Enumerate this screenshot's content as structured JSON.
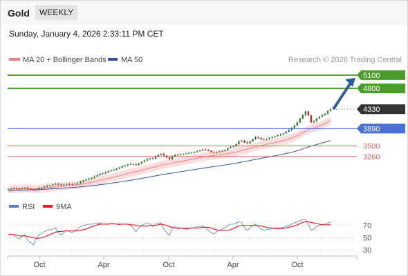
{
  "header": {
    "title": "Gold",
    "timeframe": "WEEKLY"
  },
  "timestamp": "Sunday, January 4, 2026 2:33:11 PM CET",
  "legend": {
    "items": [
      {
        "label": "MA 20 + Bollinger Bands",
        "color": "#f08080"
      },
      {
        "label": "MA 50",
        "color": "#2f5597"
      }
    ],
    "credit": "Research © 2026 Trading Central"
  },
  "rsi_legend": {
    "items": [
      {
        "label": "RSI",
        "color": "#5b7bd5"
      },
      {
        "label": "9MA",
        "color": "#e02020"
      }
    ]
  },
  "colors": {
    "resistance": "#4a9d2a",
    "pivot": "#4a6fd6",
    "support": "#e06060",
    "current": "#333333",
    "arrow": "#2f5d9e",
    "candle_up": "#2e7d32",
    "candle_down": "#c62828",
    "band_fill": "#fbd5d5"
  },
  "chart_data": [
    {
      "type": "candlestick",
      "title": "Gold",
      "x_tick_labels": [
        "Oct",
        "Apr",
        "Oct",
        "Apr",
        "Oct"
      ],
      "y_range": [
        2400,
        5300
      ],
      "levels": [
        {
          "value": 5100,
          "label": "5100",
          "kind": "resistance"
        },
        {
          "value": 4800,
          "label": "4800",
          "kind": "resistance"
        },
        {
          "value": 4330,
          "label": "4330",
          "kind": "current"
        },
        {
          "value": 3890,
          "label": "3890",
          "kind": "pivot"
        },
        {
          "value": 3500,
          "label": "3500",
          "kind": "support"
        },
        {
          "value": 3260,
          "label": "3260",
          "kind": "support"
        }
      ],
      "close_series": [
        2520,
        2535,
        2545,
        2530,
        2525,
        2540,
        2555,
        2530,
        2515,
        2500,
        2520,
        2545,
        2560,
        2580,
        2600,
        2610,
        2630,
        2645,
        2625,
        2610,
        2625,
        2640,
        2635,
        2630,
        2645,
        2660,
        2690,
        2720,
        2740,
        2760,
        2780,
        2810,
        2840,
        2870,
        2885,
        2900,
        2930,
        2950,
        2965,
        2990,
        3010,
        3040,
        3060,
        3080,
        3090,
        3085,
        3070,
        3100,
        3140,
        3170,
        3200,
        3220,
        3210,
        3260,
        3300,
        3320,
        3280,
        3240,
        3200,
        3260,
        3300,
        3290,
        3310,
        3320,
        3330,
        3340,
        3350,
        3360,
        3380,
        3400,
        3420,
        3410,
        3390,
        3360,
        3350,
        3360,
        3375,
        3390,
        3410,
        3450,
        3480,
        3500,
        3540,
        3600,
        3620,
        3580,
        3560,
        3600,
        3650,
        3700,
        3680,
        3650,
        3640,
        3660,
        3680,
        3700,
        3720,
        3740,
        3760,
        3780,
        3820,
        3860,
        3910,
        3960,
        4030,
        4120,
        4200,
        4280,
        4190,
        4030,
        4060,
        4120,
        4160,
        4200,
        4230,
        4290,
        4330
      ],
      "ma20": [
        2520,
        2525,
        2530,
        2532,
        2533,
        2535,
        2537,
        2536,
        2534,
        2532,
        2532,
        2536,
        2540,
        2546,
        2552,
        2560,
        2570,
        2580,
        2585,
        2588,
        2594,
        2600,
        2605,
        2608,
        2614,
        2620,
        2630,
        2642,
        2654,
        2665,
        2678,
        2692,
        2706,
        2722,
        2736,
        2750,
        2766,
        2782,
        2797,
        2812,
        2826,
        2842,
        2860,
        2878,
        2894,
        2908,
        2920,
        2934,
        2950,
        2966,
        2982,
        3000,
        3014,
        3030,
        3048,
        3066,
        3080,
        3090,
        3098,
        3110,
        3124,
        3136,
        3148,
        3160,
        3172,
        3184,
        3196,
        3208,
        3220,
        3232,
        3246,
        3258,
        3266,
        3274,
        3282,
        3290,
        3298,
        3306,
        3314,
        3324,
        3336,
        3348,
        3362,
        3380,
        3398,
        3412,
        3424,
        3440,
        3458,
        3478,
        3494,
        3508,
        3520,
        3534,
        3548,
        3562,
        3576,
        3590,
        3604,
        3618,
        3636,
        3656,
        3678,
        3702,
        3730,
        3762,
        3798,
        3838,
        3866,
        3886,
        3906,
        3928,
        3952,
        3978,
        4004,
        4034,
        4066
      ],
      "bb_width": 90,
      "ma50": [
        2480,
        2484,
        2488,
        2492,
        2496,
        2500,
        2503,
        2506,
        2508,
        2510,
        2512,
        2515,
        2518,
        2521,
        2524,
        2528,
        2532,
        2536,
        2540,
        2544,
        2548,
        2552,
        2556,
        2560,
        2565,
        2570,
        2576,
        2582,
        2588,
        2594,
        2601,
        2608,
        2615,
        2623,
        2631,
        2639,
        2648,
        2657,
        2666,
        2675,
        2684,
        2694,
        2704,
        2714,
        2724,
        2734,
        2744,
        2755,
        2766,
        2777,
        2788,
        2800,
        2811,
        2822,
        2834,
        2846,
        2857,
        2867,
        2876,
        2886,
        2896,
        2906,
        2916,
        2926,
        2936,
        2946,
        2956,
        2966,
        2976,
        2986,
        2996,
        3006,
        3015,
        3024,
        3033,
        3042,
        3051,
        3060,
        3069,
        3079,
        3089,
        3099,
        3110,
        3122,
        3134,
        3146,
        3157,
        3169,
        3182,
        3195,
        3207,
        3219,
        3230,
        3242,
        3254,
        3266,
        3278,
        3290,
        3302,
        3314,
        3327,
        3341,
        3356,
        3372,
        3390,
        3410,
        3432,
        3456,
        3476,
        3494,
        3512,
        3530,
        3548,
        3566,
        3584,
        3603,
        3623
      ],
      "projection": {
        "from": 4330,
        "to": 5100
      }
    },
    {
      "type": "line",
      "title": "RSI",
      "y_tick_labels": [
        "70",
        "50",
        "30"
      ],
      "y_range": [
        20,
        90
      ],
      "series": [
        {
          "name": "RSI",
          "values": [
            55,
            56,
            54,
            50,
            48,
            52,
            55,
            45,
            42,
            38,
            48,
            55,
            57,
            60,
            62,
            63,
            64,
            66,
            58,
            54,
            58,
            62,
            60,
            58,
            62,
            64,
            68,
            70,
            71,
            72,
            72,
            73,
            74,
            74,
            72,
            72,
            73,
            73,
            72,
            72,
            71,
            72,
            72,
            72,
            70,
            66,
            60,
            66,
            70,
            72,
            73,
            73,
            68,
            72,
            74,
            74,
            64,
            58,
            54,
            64,
            68,
            64,
            66,
            66,
            66,
            66,
            66,
            66,
            68,
            68,
            69,
            66,
            62,
            58,
            56,
            60,
            62,
            64,
            66,
            70,
            72,
            72,
            74,
            76,
            75,
            66,
            62,
            66,
            70,
            72,
            68,
            64,
            62,
            63,
            64,
            65,
            66,
            66,
            66,
            67,
            69,
            70,
            72,
            74,
            76,
            78,
            79,
            80,
            72,
            62,
            64,
            68,
            70,
            72,
            72,
            74,
            75
          ]
        },
        {
          "name": "9MA",
          "values": [
            55,
            55,
            55,
            54,
            53,
            53,
            53,
            52,
            51,
            50,
            49,
            49,
            50,
            51,
            53,
            55,
            57,
            59,
            60,
            60,
            61,
            61,
            61,
            61,
            61,
            61,
            62,
            63,
            64,
            66,
            68,
            69,
            71,
            72,
            72,
            72,
            72,
            73,
            73,
            72,
            72,
            72,
            72,
            72,
            71,
            71,
            70,
            69,
            69,
            69,
            69,
            70,
            70,
            70,
            71,
            72,
            71,
            70,
            68,
            67,
            66,
            66,
            66,
            65,
            64,
            65,
            66,
            66,
            66,
            66,
            67,
            67,
            67,
            66,
            64,
            63,
            62,
            62,
            62,
            62,
            63,
            65,
            67,
            69,
            70,
            70,
            70,
            70,
            70,
            70,
            70,
            69,
            68,
            67,
            66,
            66,
            65,
            65,
            65,
            65,
            66,
            67,
            68,
            69,
            71,
            73,
            75,
            76,
            76,
            75,
            74,
            73,
            72,
            71,
            71,
            71,
            71
          ]
        }
      ]
    }
  ]
}
